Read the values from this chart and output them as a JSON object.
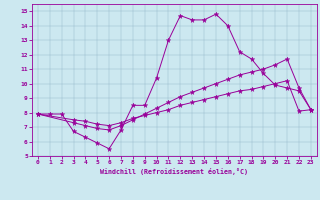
{
  "bg_color": "#cce8f0",
  "line_color": "#990099",
  "xlim": [
    -0.5,
    23.5
  ],
  "ylim": [
    5,
    15.5
  ],
  "xticks": [
    0,
    1,
    2,
    3,
    4,
    5,
    6,
    7,
    8,
    9,
    10,
    11,
    12,
    13,
    14,
    15,
    16,
    17,
    18,
    19,
    20,
    21,
    22,
    23
  ],
  "yticks": [
    5,
    6,
    7,
    8,
    9,
    10,
    11,
    12,
    13,
    14,
    15
  ],
  "xlabel": "Windchill (Refroidissement éolien,°C)",
  "series1_x": [
    0,
    1,
    2,
    3,
    4,
    5,
    6,
    7,
    8,
    9,
    10,
    11,
    12,
    13,
    14,
    15,
    16,
    17,
    18,
    19,
    20,
    21,
    22,
    23
  ],
  "series1_y": [
    7.9,
    7.9,
    7.9,
    6.7,
    6.3,
    5.9,
    5.5,
    6.8,
    8.5,
    8.5,
    10.4,
    13.0,
    14.7,
    14.4,
    14.4,
    14.8,
    14.0,
    12.2,
    11.7,
    10.7,
    9.9,
    9.7,
    9.5,
    8.2
  ],
  "series2_x": [
    0,
    3,
    4,
    5,
    6,
    7,
    8,
    9,
    10,
    11,
    12,
    13,
    14,
    15,
    16,
    17,
    18,
    19,
    20,
    21,
    22,
    23
  ],
  "series2_y": [
    7.9,
    7.3,
    7.1,
    6.9,
    6.8,
    7.1,
    7.5,
    7.9,
    8.3,
    8.7,
    9.1,
    9.4,
    9.7,
    10.0,
    10.3,
    10.6,
    10.8,
    11.0,
    11.3,
    11.7,
    9.7,
    8.2
  ],
  "series3_x": [
    0,
    3,
    4,
    5,
    6,
    7,
    8,
    9,
    10,
    11,
    12,
    13,
    14,
    15,
    16,
    17,
    18,
    19,
    20,
    21,
    22,
    23
  ],
  "series3_y": [
    7.9,
    7.5,
    7.4,
    7.2,
    7.1,
    7.3,
    7.6,
    7.8,
    8.0,
    8.2,
    8.5,
    8.7,
    8.9,
    9.1,
    9.3,
    9.5,
    9.6,
    9.8,
    10.0,
    10.2,
    8.1,
    8.2
  ]
}
